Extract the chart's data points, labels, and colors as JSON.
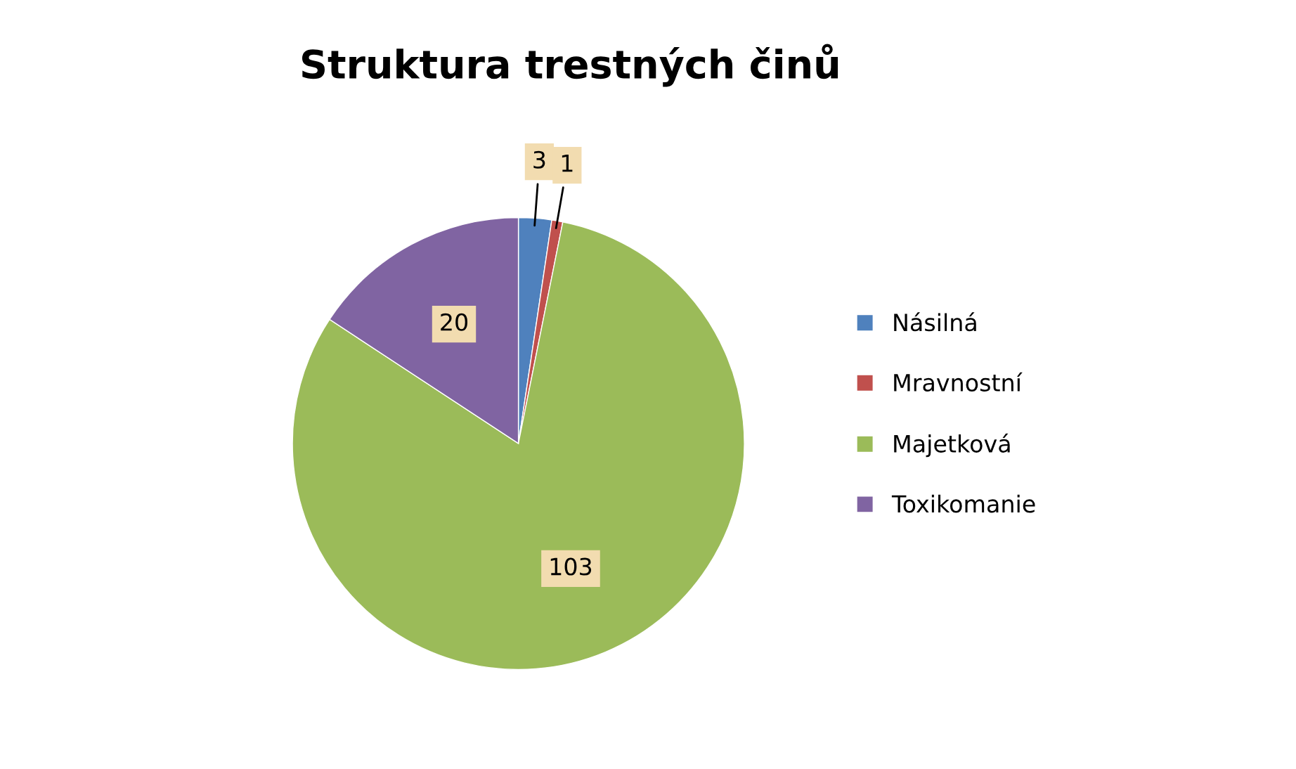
{
  "chart_data": {
    "type": "pie",
    "title": "Struktura trestných činů",
    "categories": [
      "Násilná",
      "Mravnostní",
      "Majetková",
      "Toxikomanie"
    ],
    "values": [
      3,
      1,
      103,
      20
    ],
    "colors": [
      "#4f81bd",
      "#c0504d",
      "#9bbb59",
      "#8064a2"
    ],
    "data_labels": true,
    "legend": "right"
  }
}
